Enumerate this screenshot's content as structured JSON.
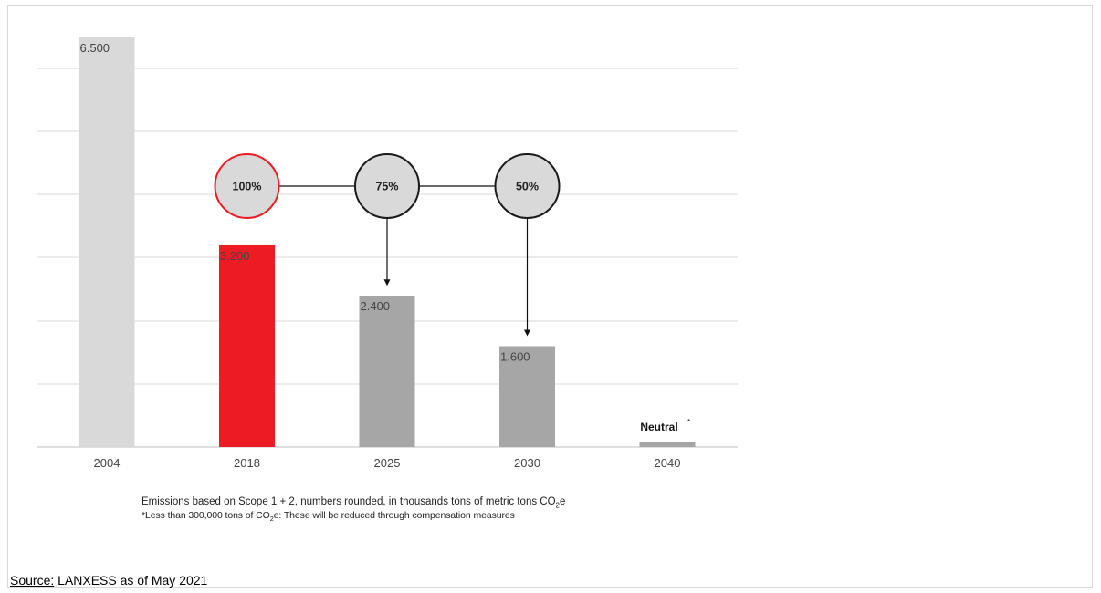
{
  "chart_data": {
    "type": "bar",
    "categories": [
      "2004",
      "2018",
      "2025",
      "2030",
      "2040"
    ],
    "values": [
      6500,
      3200,
      2400,
      1600,
      0
    ],
    "value_labels": [
      "6.500",
      "3.200",
      "2.400",
      "1.600",
      "Neutral"
    ],
    "value_label_marker": "*",
    "bar_colors": [
      "#d9d9d9",
      "#ed1c24",
      "#a6a6a6",
      "#a6a6a6",
      "#a6a6a6"
    ],
    "ylim": [
      0,
      6500
    ],
    "grid": true,
    "targets": [
      {
        "category": "2018",
        "label": "100%",
        "outline": "#ed1c24"
      },
      {
        "category": "2025",
        "label": "75%",
        "outline": "#1a1a1a"
      },
      {
        "category": "2030",
        "label": "50%",
        "outline": "#1a1a1a"
      }
    ]
  },
  "notes": {
    "line1_prefix": "Emissions based on Scope 1 + 2, numbers rounded, in thousands tons of metric tons CO",
    "line1_sub": "2",
    "line1_suffix": "e",
    "line2_prefix": "*Less than 300,000 tons of CO",
    "line2_sub": "2",
    "line2_suffix": "e: These will be reduced through compensation measures"
  },
  "source": {
    "label": "Source:",
    "text": " LANXESS as of May 2021"
  }
}
